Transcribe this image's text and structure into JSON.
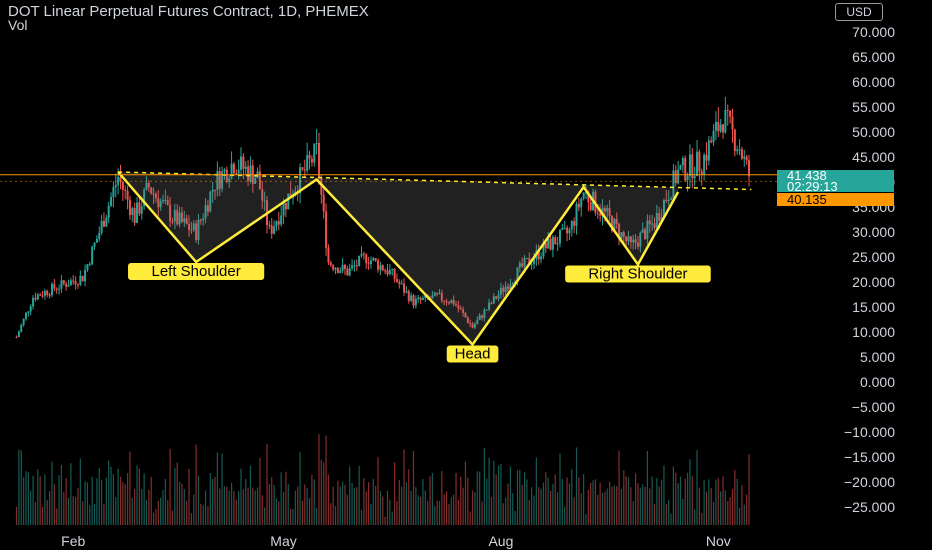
{
  "header": {
    "title": "DOT Linear Perpetual Futures Contract, 1D, PHEMEX",
    "indicator_label": "Vol",
    "currency": "USD"
  },
  "price_tags": {
    "last_price": "41.438",
    "countdown": "02:29:13",
    "level": "40.135"
  },
  "colors": {
    "background": "#000000",
    "up": "#26a69a",
    "down": "#ef5350",
    "pattern_line": "#ffeb3b",
    "level_line": "#ff9800",
    "label_bg": "#ffeb3b"
  },
  "chart_data": {
    "type": "candlestick",
    "title": "DOT Linear Perpetual Futures Contract, 1D, PHEMEX",
    "y_axis_ticks": [
      "70.000",
      "65.000",
      "60.000",
      "55.000",
      "50.000",
      "45.000",
      "40.000",
      "35.000",
      "30.000",
      "25.000",
      "20.000",
      "15.000",
      "10.000",
      "5.000",
      "0.000",
      "−5.000",
      "−10.000",
      "−15.000",
      "−20.000",
      "−25.000"
    ],
    "x_axis_ticks": [
      {
        "label": "Feb",
        "date": "2021-02-01"
      },
      {
        "label": "May",
        "date": "2021-05-01"
      },
      {
        "label": "Aug",
        "date": "2021-08-01"
      },
      {
        "label": "Nov",
        "date": "2021-11-01"
      }
    ],
    "ylim": [
      -28,
      77
    ],
    "neckline_level": 40.135,
    "last_price": 41.438,
    "pattern": {
      "name": "Inverse head and shoulders",
      "points": [
        {
          "date": "2021-02-20",
          "price": 42
        },
        {
          "date": "2021-03-25",
          "price": 24
        },
        {
          "date": "2021-05-15",
          "price": 40.5
        },
        {
          "date": "2021-07-20",
          "price": 7.5
        },
        {
          "date": "2021-09-05",
          "price": 39
        },
        {
          "date": "2021-09-28",
          "price": 23.5
        },
        {
          "date": "2021-10-15",
          "price": 38
        }
      ],
      "neckline": [
        {
          "date": "2021-02-20",
          "price": 42
        },
        {
          "date": "2021-11-15",
          "price": 38.5
        }
      ],
      "labels": [
        {
          "text": "Left Shoulder",
          "date": "2021-03-25",
          "price": 22
        },
        {
          "text": "Head",
          "date": "2021-07-20",
          "price": 5.5
        },
        {
          "text": "Right Shoulder",
          "date": "2021-09-28",
          "price": 21.5
        }
      ]
    },
    "price_path": [
      {
        "date": "2021-01-08",
        "price": 9
      },
      {
        "date": "2021-01-15",
        "price": 17
      },
      {
        "date": "2021-01-25",
        "price": 19
      },
      {
        "date": "2021-02-05",
        "price": 21
      },
      {
        "date": "2021-02-12",
        "price": 30
      },
      {
        "date": "2021-02-20",
        "price": 41
      },
      {
        "date": "2021-02-27",
        "price": 33
      },
      {
        "date": "2021-03-05",
        "price": 39
      },
      {
        "date": "2021-03-15",
        "price": 33
      },
      {
        "date": "2021-03-25",
        "price": 30
      },
      {
        "date": "2021-04-02",
        "price": 40
      },
      {
        "date": "2021-04-10",
        "price": 44
      },
      {
        "date": "2021-04-20",
        "price": 41
      },
      {
        "date": "2021-04-25",
        "price": 30
      },
      {
        "date": "2021-05-03",
        "price": 37
      },
      {
        "date": "2021-05-15",
        "price": 46
      },
      {
        "date": "2021-05-20",
        "price": 24
      },
      {
        "date": "2021-05-28",
        "price": 22
      },
      {
        "date": "2021-06-05",
        "price": 25
      },
      {
        "date": "2021-06-15",
        "price": 22
      },
      {
        "date": "2021-06-25",
        "price": 16
      },
      {
        "date": "2021-07-05",
        "price": 17
      },
      {
        "date": "2021-07-12",
        "price": 16
      },
      {
        "date": "2021-07-20",
        "price": 11
      },
      {
        "date": "2021-07-30",
        "price": 17
      },
      {
        "date": "2021-08-10",
        "price": 23
      },
      {
        "date": "2021-08-20",
        "price": 27
      },
      {
        "date": "2021-08-30",
        "price": 30
      },
      {
        "date": "2021-09-05",
        "price": 38
      },
      {
        "date": "2021-09-15",
        "price": 33
      },
      {
        "date": "2021-09-25",
        "price": 27
      },
      {
        "date": "2021-10-05",
        "price": 32
      },
      {
        "date": "2021-10-15",
        "price": 42
      },
      {
        "date": "2021-10-25",
        "price": 44
      },
      {
        "date": "2021-11-03",
        "price": 53
      },
      {
        "date": "2021-11-10",
        "price": 47
      },
      {
        "date": "2021-11-14",
        "price": 41.4
      }
    ]
  }
}
